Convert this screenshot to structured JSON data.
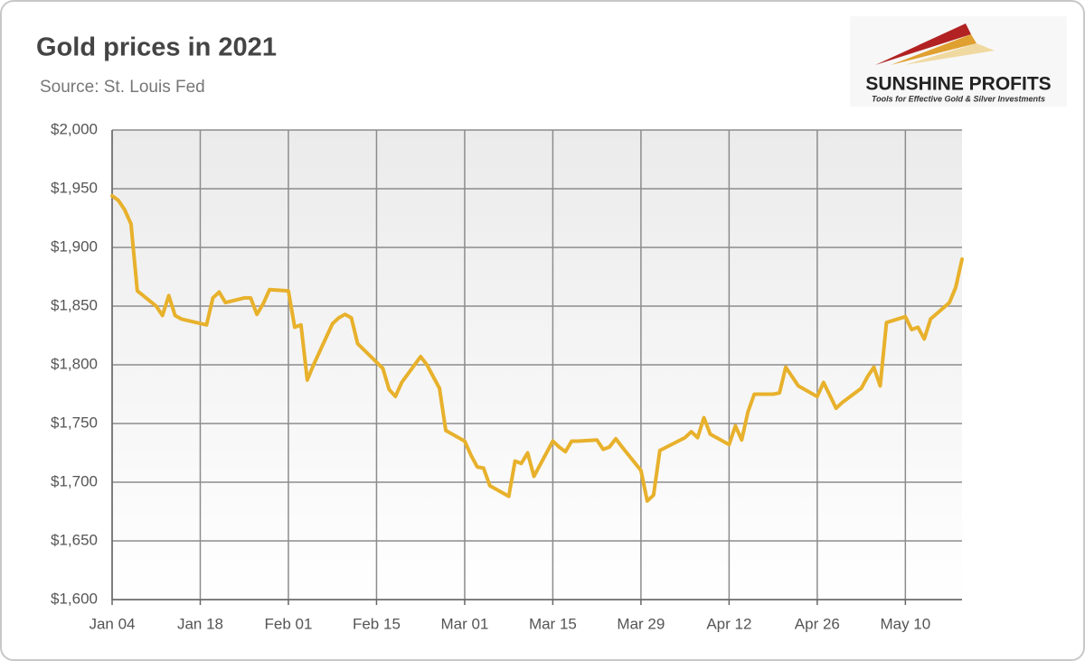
{
  "chart_data": {
    "type": "line",
    "title": "Gold prices in 2021",
    "subtitle": "Source: St. Louis Fed",
    "x": [
      "Jan 04",
      "Jan 05",
      "Jan 06",
      "Jan 07",
      "Jan 08",
      "Jan 11",
      "Jan 12",
      "Jan 13",
      "Jan 14",
      "Jan 15",
      "Jan 19",
      "Jan 20",
      "Jan 21",
      "Jan 22",
      "Jan 25",
      "Jan 26",
      "Jan 27",
      "Jan 28",
      "Jan 29",
      "Feb 01",
      "Feb 02",
      "Feb 03",
      "Feb 04",
      "Feb 05",
      "Feb 08",
      "Feb 09",
      "Feb 10",
      "Feb 11",
      "Feb 12",
      "Feb 16",
      "Feb 17",
      "Feb 18",
      "Feb 19",
      "Feb 22",
      "Feb 23",
      "Feb 24",
      "Feb 25",
      "Feb 26",
      "Mar 01",
      "Mar 02",
      "Mar 03",
      "Mar 04",
      "Mar 05",
      "Mar 08",
      "Mar 09",
      "Mar 10",
      "Mar 11",
      "Mar 12",
      "Mar 15",
      "Mar 16",
      "Mar 17",
      "Mar 18",
      "Mar 19",
      "Mar 22",
      "Mar 23",
      "Mar 24",
      "Mar 25",
      "Mar 26",
      "Mar 29",
      "Mar 30",
      "Mar 31",
      "Apr 01",
      "Apr 05",
      "Apr 06",
      "Apr 07",
      "Apr 08",
      "Apr 09",
      "Apr 12",
      "Apr 13",
      "Apr 14",
      "Apr 15",
      "Apr 16",
      "Apr 19",
      "Apr 20",
      "Apr 21",
      "Apr 22",
      "Apr 23",
      "Apr 26",
      "Apr 27",
      "Apr 28",
      "Apr 29",
      "Apr 30",
      "May 03",
      "May 04",
      "May 05",
      "May 06",
      "May 07",
      "May 10",
      "May 11",
      "May 12",
      "May 13",
      "May 14",
      "May 17",
      "May 18",
      "May 19"
    ],
    "values": [
      1944,
      1940,
      1932,
      1920,
      1863,
      1850,
      1842,
      1859,
      1842,
      1839,
      1834,
      1857,
      1862,
      1853,
      1857,
      1857,
      1843,
      1852,
      1864,
      1863,
      1832,
      1834,
      1787,
      1800,
      1835,
      1840,
      1843,
      1840,
      1818,
      1797,
      1779,
      1773,
      1785,
      1807,
      1800,
      1790,
      1780,
      1744,
      1735,
      1723,
      1713,
      1712,
      1697,
      1688,
      1718,
      1716,
      1725,
      1705,
      1735,
      1730,
      1726,
      1735,
      1735,
      1736,
      1728,
      1730,
      1737,
      1730,
      1710,
      1684,
      1689,
      1727,
      1738,
      1743,
      1738,
      1755,
      1741,
      1732,
      1748,
      1736,
      1760,
      1775,
      1775,
      1776,
      1798,
      1790,
      1782,
      1773,
      1785,
      1774,
      1763,
      1768,
      1780,
      1790,
      1798,
      1782,
      1836,
      1841,
      1830,
      1832,
      1822,
      1839,
      1853,
      1866,
      1890
    ],
    "color": "#e8b12c",
    "xlim": [
      "Jan 04",
      "May 19"
    ],
    "xticks": [
      "Jan 04",
      "Jan 18",
      "Feb 01",
      "Feb 15",
      "Mar 01",
      "Mar 15",
      "Mar 29",
      "Apr 12",
      "Apr 26",
      "May 10"
    ],
    "ylim": [
      1600,
      2000
    ],
    "yticks": [
      {
        "value": 1600,
        "label": "$1,600"
      },
      {
        "value": 1650,
        "label": "$1,650"
      },
      {
        "value": 1700,
        "label": "$1,700"
      },
      {
        "value": 1750,
        "label": "$1,750"
      },
      {
        "value": 1800,
        "label": "$1,800"
      },
      {
        "value": 1850,
        "label": "$1,850"
      },
      {
        "value": 1900,
        "label": "$1,900"
      },
      {
        "value": 1950,
        "label": "$1,950"
      },
      {
        "value": 2000,
        "label": "$2,000"
      }
    ],
    "grid": true
  },
  "logo": {
    "name": "SUNSHINE PROFITS",
    "tagline": "Tools for Effective Gold & Silver Investments"
  }
}
